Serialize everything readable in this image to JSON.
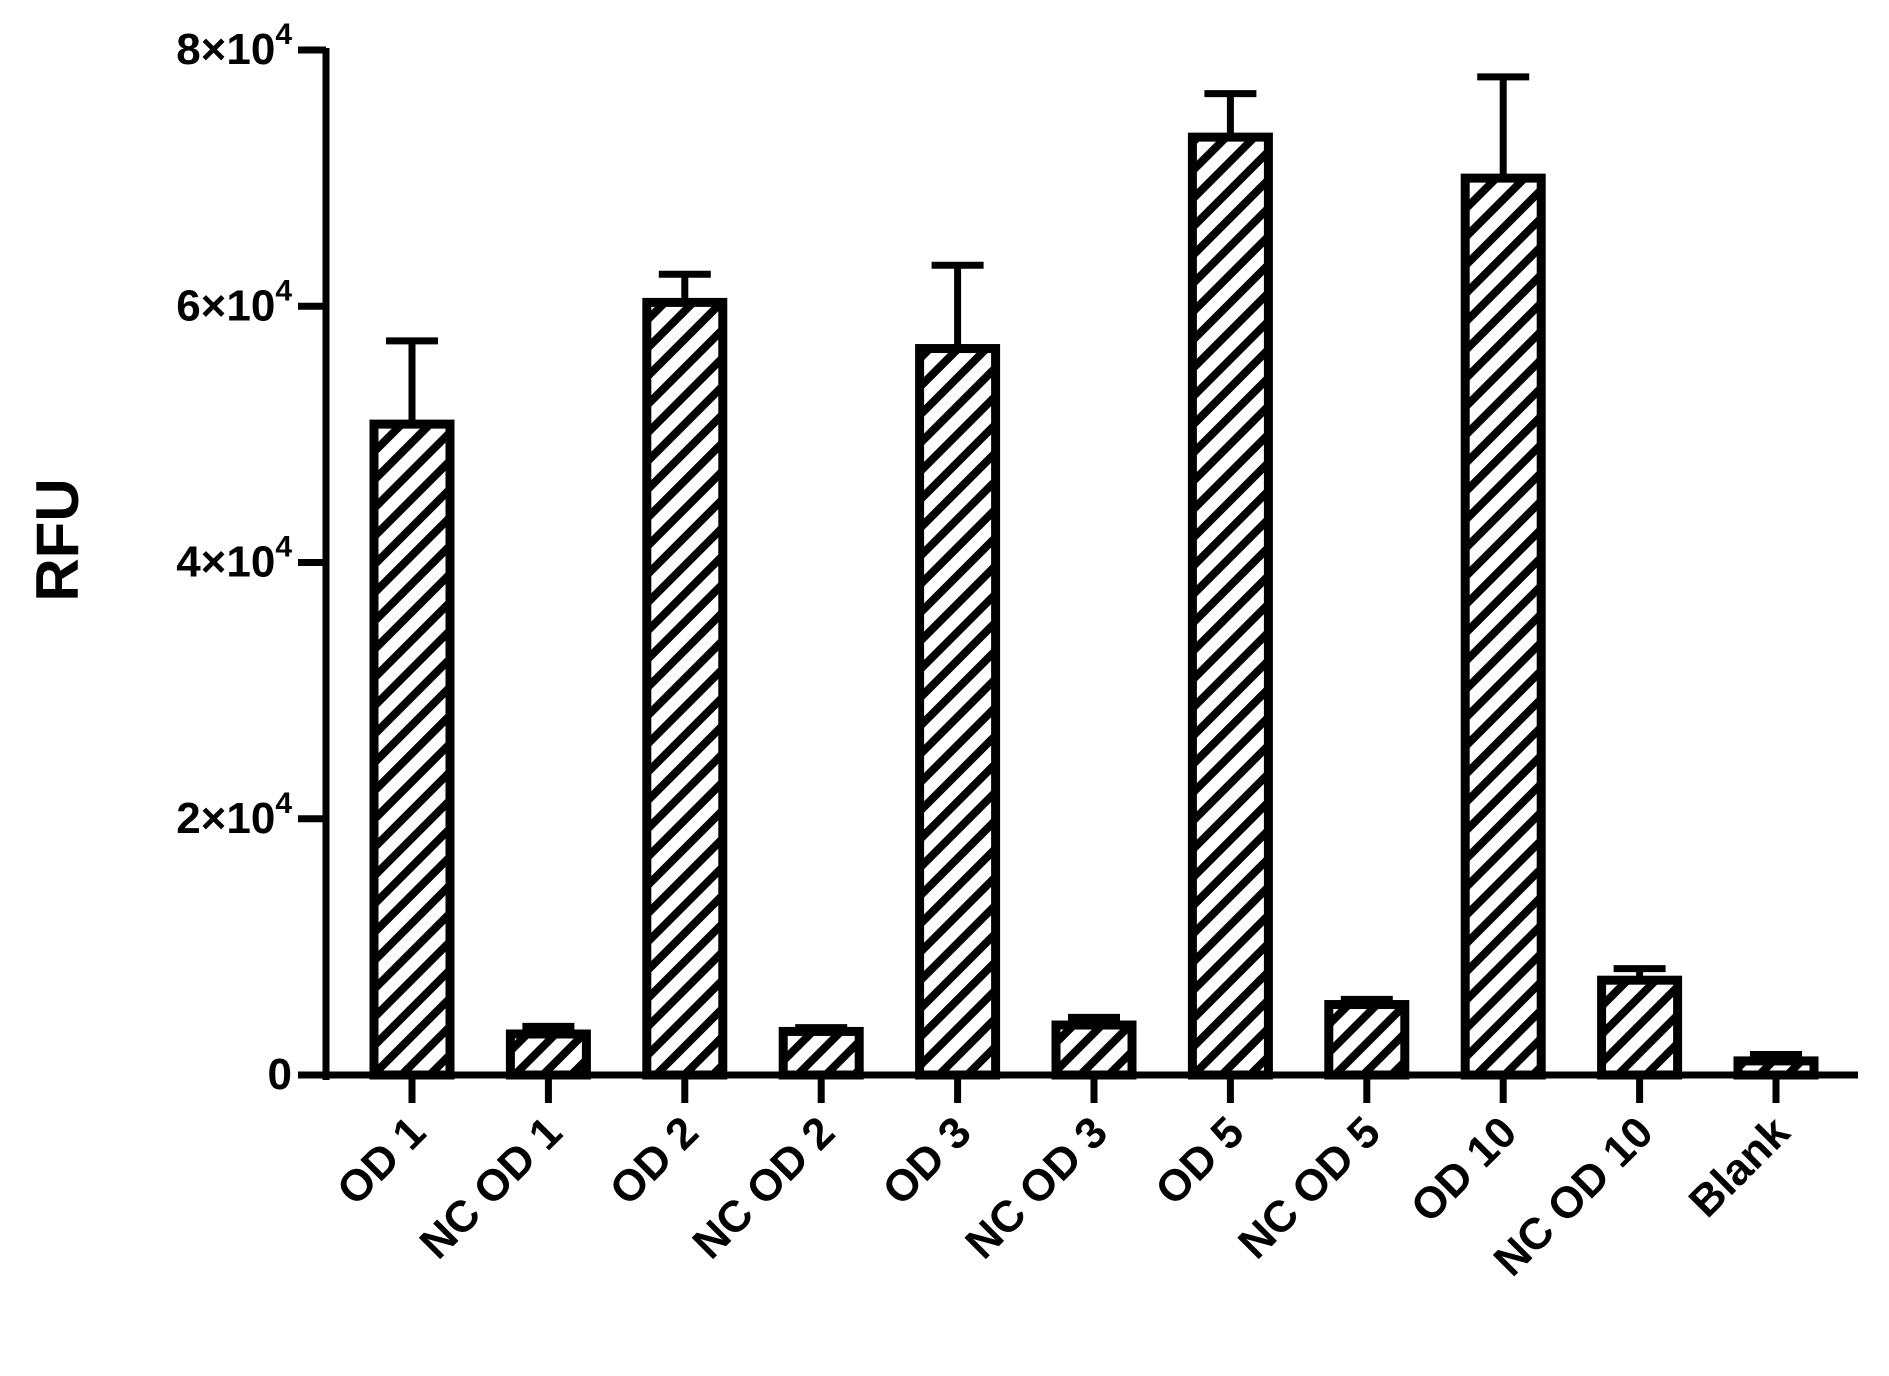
{
  "chart_data": {
    "type": "bar",
    "title": "",
    "xlabel": "",
    "ylabel": "RFU",
    "ylim": [
      0,
      80000
    ],
    "yticks": [
      {
        "value": 0,
        "mantissa": "0",
        "exp": ""
      },
      {
        "value": 20000,
        "mantissa": "2×10",
        "exp": "4"
      },
      {
        "value": 40000,
        "mantissa": "4×10",
        "exp": "4"
      },
      {
        "value": 60000,
        "mantissa": "6×10",
        "exp": "4"
      },
      {
        "value": 80000,
        "mantissa": "8×10",
        "exp": "4"
      }
    ],
    "categories": [
      "OD 1",
      "NC OD 1",
      "OD 2",
      "NC OD 2",
      "OD 3",
      "NC OD 3",
      "OD 5",
      "NC OD 5",
      "OD 10",
      "NC OD 10",
      "Blank"
    ],
    "values": [
      50800,
      3200,
      60300,
      3400,
      56700,
      3900,
      73200,
      5500,
      70000,
      7400,
      1100
    ],
    "errors": [
      6500,
      600,
      2200,
      300,
      6500,
      600,
      3400,
      400,
      7900,
      900,
      500
    ],
    "error_bars": "upper",
    "bar_fill": "diagonal-hatch",
    "grid": false,
    "legend": "none",
    "colors": {
      "stroke": "#000000",
      "fill": "#ffffff"
    }
  }
}
